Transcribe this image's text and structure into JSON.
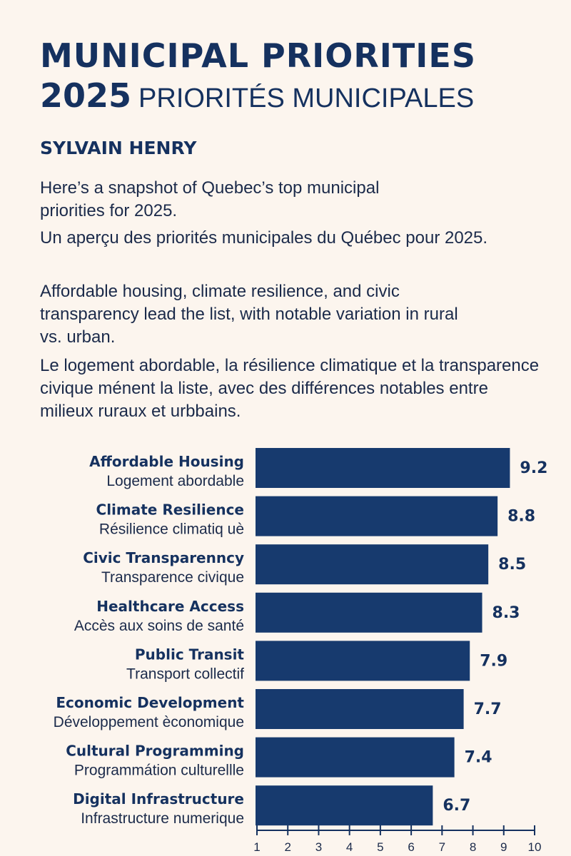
{
  "header": {
    "title_line1": "MUNICIPAL PRIORITIES",
    "title_year": "2025",
    "title_fr": "PRIORITÉS MUNICIPALES",
    "author": "SYLVAIN HENRY"
  },
  "intro": {
    "p1": "Here’s a snapshot of Quebec’s top municipal priorities for 2025.",
    "p2": "Un aperçu des priorités municipales du Québec pour 2025.",
    "p3": "Affordable housing, climate resilience, and civic transparency lead the list, with notable variation in rural vs. urban.",
    "p4": "Le logement abordable, la résilience climatique et la transparence civique ménent la liste, avec des différences notables entre milieux ruraux et urbbains."
  },
  "colors": {
    "bar": "#173a6e",
    "text": "#15315f",
    "background": "#fcf5ee"
  },
  "chart_data": {
    "type": "bar",
    "orientation": "horizontal",
    "categories": [
      "Affordable Housing",
      "Climate Resilience",
      "Civic Transparenncy",
      "Healthcare Access",
      "Public Transit",
      "Economic Development",
      "Cultural Programming",
      "Digital Infrastructure"
    ],
    "categories_fr": [
      "Logement abordable",
      "Résilience climatiq uè",
      "Transparence civique",
      "Accès aux soins de santé",
      "Transport collectif",
      "Développement èconomique",
      "Programmátion culturellle",
      "Infrastructure numerique"
    ],
    "values": [
      9.2,
      8.8,
      8.5,
      8.3,
      7.9,
      7.7,
      7.4,
      6.7
    ],
    "value_labels": [
      "9.2",
      "8.8",
      "8.5",
      "8.3",
      "7.9",
      "7.7",
      "7.4",
      "6.7"
    ],
    "xlim": [
      1,
      10
    ],
    "xticks": [
      "1",
      "2",
      "3",
      "4",
      "5",
      "6",
      "7",
      "8",
      "9",
      "10"
    ],
    "grid": false,
    "legend": "none"
  }
}
